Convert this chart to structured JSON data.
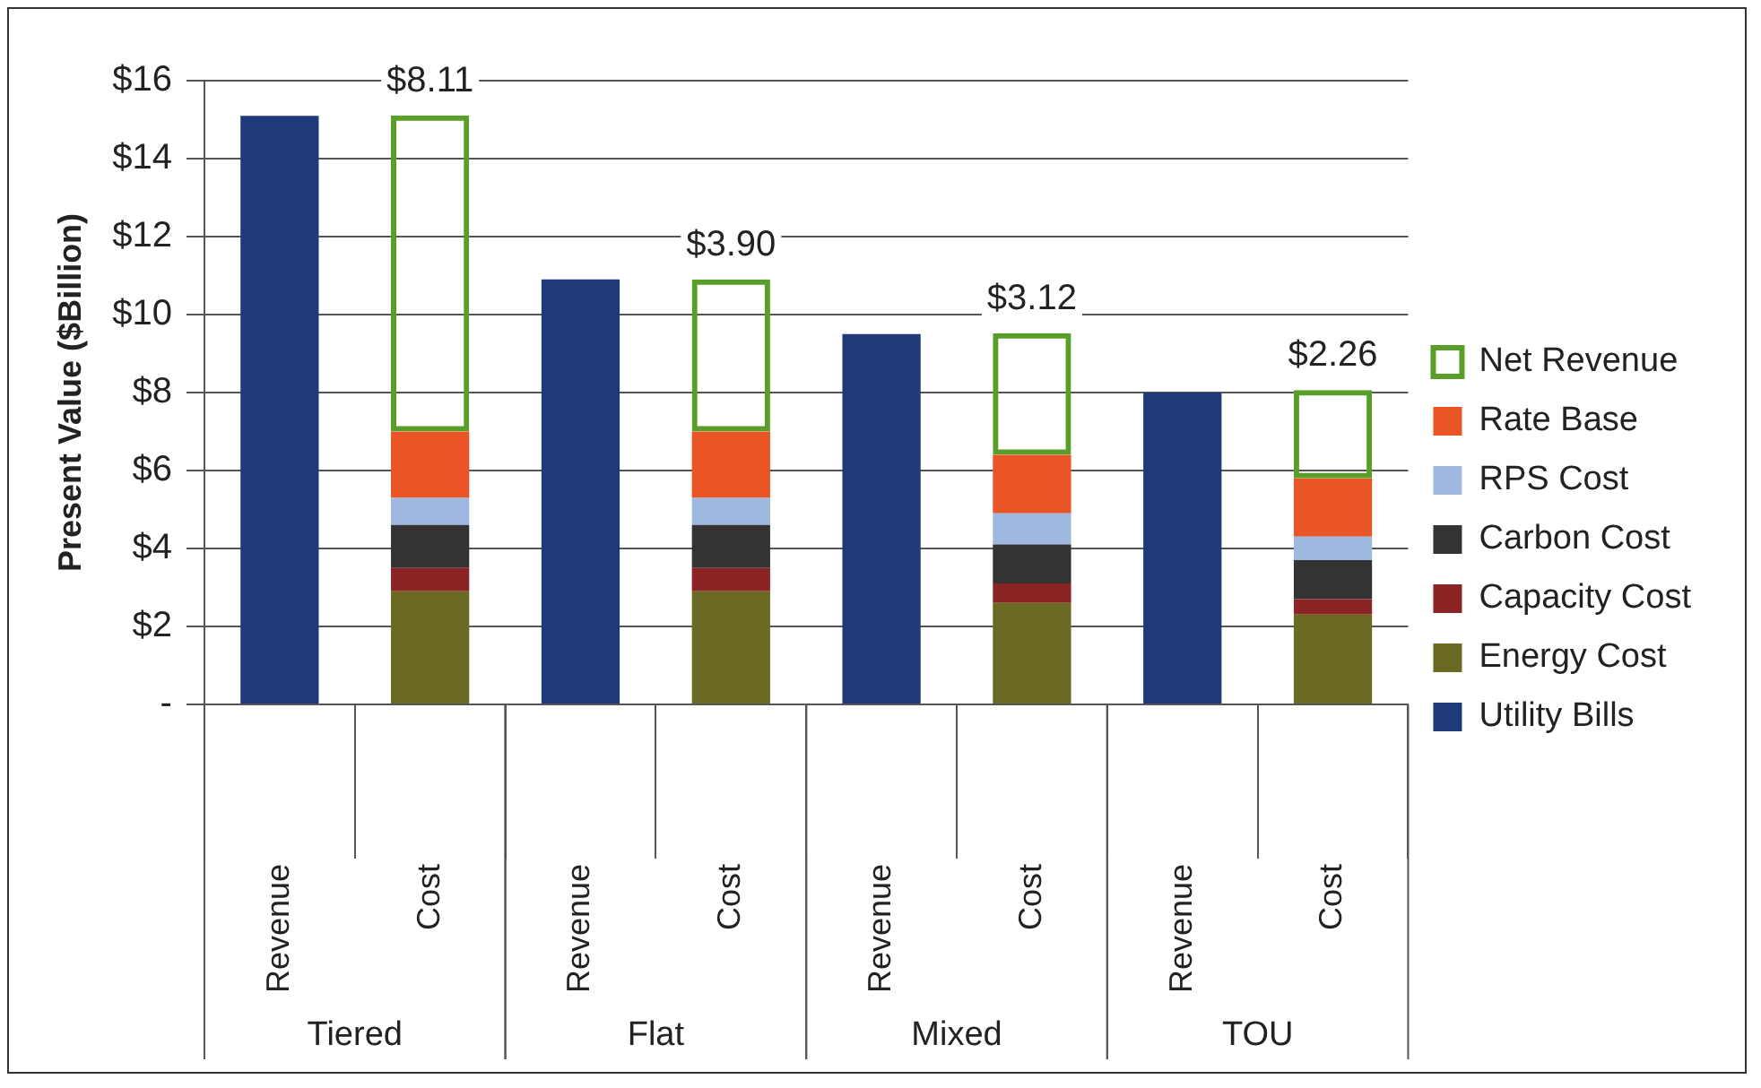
{
  "chart_data": {
    "type": "bar",
    "stacked": true,
    "ylabel": "Present Value ($Billion)",
    "categories": [
      "Revenue",
      "Cost",
      "Revenue",
      "Cost",
      "Revenue",
      "Cost",
      "Revenue",
      "Cost"
    ],
    "annotations": [
      "Tiered",
      "Flat",
      "Mixed",
      "TOU"
    ],
    "series": [
      {
        "name": "Utility Bills",
        "color": "#1f3a78",
        "values": [
          15.1,
          null,
          10.9,
          null,
          9.5,
          null,
          8.0,
          null
        ]
      },
      {
        "name": "Energy Cost",
        "color": "#6b6a24",
        "values": [
          null,
          2.9,
          null,
          2.9,
          null,
          2.6,
          null,
          2.3
        ]
      },
      {
        "name": "Capacity Cost",
        "color": "#8b2424",
        "values": [
          null,
          0.6,
          null,
          0.6,
          null,
          0.5,
          null,
          0.4
        ]
      },
      {
        "name": "Carbon Cost",
        "color": "#333333",
        "values": [
          null,
          1.1,
          null,
          1.1,
          null,
          1.0,
          null,
          1.0
        ]
      },
      {
        "name": "RPS Cost",
        "color": "#9fb8e0",
        "values": [
          null,
          0.7,
          null,
          0.7,
          null,
          0.8,
          null,
          0.6
        ]
      },
      {
        "name": "Rate Base",
        "color": "#ea5526",
        "values": [
          null,
          1.7,
          null,
          1.7,
          null,
          1.5,
          null,
          1.5
        ]
      },
      {
        "name": "Net Revenue",
        "color": "#5a9e2a",
        "values": [
          null,
          8.11,
          null,
          3.9,
          null,
          3.12,
          null,
          2.26
        ],
        "value_labels": [
          null,
          "$8.11",
          null,
          "$3.90",
          null,
          "$3.12",
          null,
          "$2.26"
        ]
      }
    ],
    "ylim": [
      0,
      16
    ],
    "yticks": [
      {
        "value": 0,
        "label": "-"
      },
      {
        "value": 2,
        "label": "$2"
      },
      {
        "value": 4,
        "label": "$4"
      },
      {
        "value": 6,
        "label": "$6"
      },
      {
        "value": 8,
        "label": "$8"
      },
      {
        "value": 10,
        "label": "$10"
      },
      {
        "value": 12,
        "label": "$12"
      },
      {
        "value": 14,
        "label": "$14"
      },
      {
        "value": 16,
        "label": "$16"
      }
    ],
    "grid": "y",
    "legend": "right"
  }
}
